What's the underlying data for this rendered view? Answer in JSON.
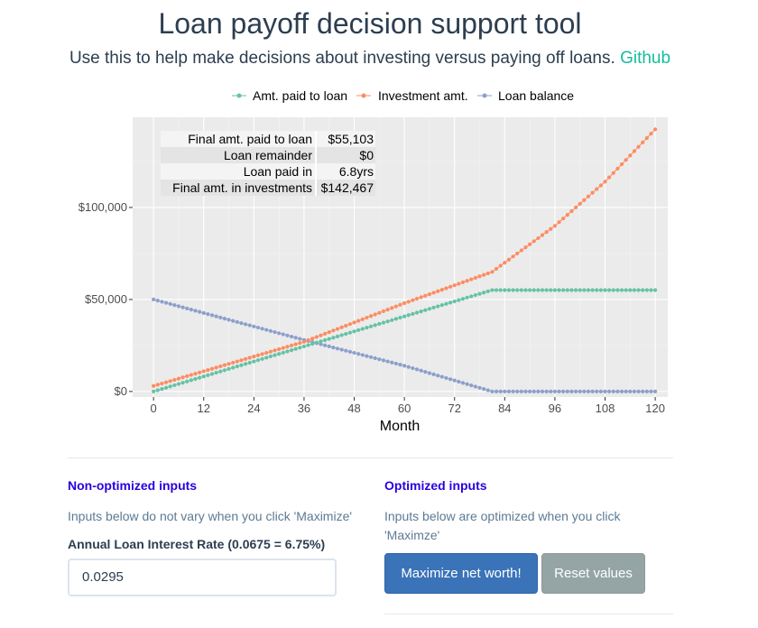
{
  "header": {
    "title": "Loan payoff decision support tool",
    "subtitle": "Use this to help make decisions about investing versus paying off loans.",
    "github_link": "Github"
  },
  "colors": {
    "paid_to_loan": "#66c2a5",
    "investment": "#fc8d62",
    "loan_balance": "#8da0cb",
    "panel": "#ebebeb",
    "accent_heading": "#2a00e0",
    "link": "#18bc9c",
    "primary_button": "#3a73b8",
    "secondary_button": "#95a5a6"
  },
  "chart_data": {
    "type": "scatter",
    "xlabel": "Month",
    "ylabel": "",
    "xlim": [
      -5,
      123
    ],
    "ylim": [
      -3000,
      149000
    ],
    "x_ticks": [
      0,
      12,
      24,
      36,
      48,
      60,
      72,
      84,
      96,
      108,
      120
    ],
    "y_ticks": [
      {
        "value": 0,
        "label": "$0"
      },
      {
        "value": 50000,
        "label": "$50,000"
      },
      {
        "value": 100000,
        "label": "$100,000"
      }
    ],
    "legend_position": "top",
    "series": [
      {
        "name": "Amt. paid to loan",
        "color_key": "paid_to_loan",
        "points": [
          [
            0,
            0
          ],
          [
            81,
            55103
          ],
          [
            120,
            55103
          ]
        ]
      },
      {
        "name": "Investment amt.",
        "color_key": "investment",
        "points": [
          [
            0,
            3000
          ],
          [
            36,
            27000
          ],
          [
            60,
            48000
          ],
          [
            81,
            65000
          ],
          [
            96,
            90000
          ],
          [
            108,
            114000
          ],
          [
            120,
            142467
          ]
        ]
      },
      {
        "name": "Loan balance",
        "color_key": "loan_balance",
        "points": [
          [
            0,
            50000
          ],
          [
            36,
            28000
          ],
          [
            60,
            14000
          ],
          [
            81,
            0
          ],
          [
            120,
            0
          ]
        ]
      }
    ],
    "summary_table": [
      {
        "label": "Final amt. paid to loan",
        "value": "$55,103"
      },
      {
        "label": "Loan remainder",
        "value": "$0"
      },
      {
        "label": "Loan paid in",
        "value": "6.8yrs"
      },
      {
        "label": "Final amt. in investments",
        "value": "$142,467"
      }
    ]
  },
  "left_panel": {
    "heading": "Non-optimized inputs",
    "help": "Inputs below do not vary when you click 'Maximize'",
    "field_label": "Annual Loan Interest Rate (0.0675 = 6.75%)",
    "field_value": "0.0295"
  },
  "right_panel": {
    "heading": "Optimized inputs",
    "help": "Inputs below are optimized when you click 'Maximze'",
    "maximize_label": "Maximize net worth!",
    "reset_label": "Reset values"
  }
}
